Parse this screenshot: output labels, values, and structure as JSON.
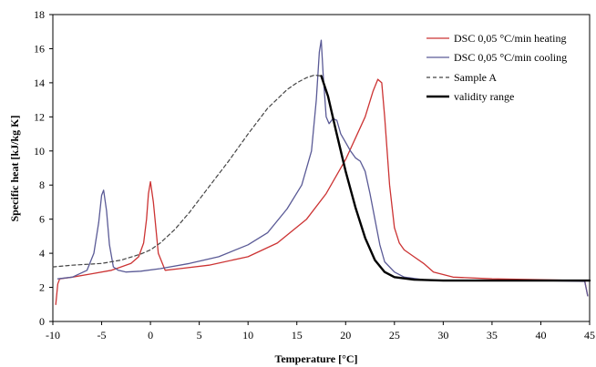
{
  "chart_data": {
    "type": "line",
    "title": "",
    "xlabel": "Temperature [°C]",
    "ylabel": "Specific heat  [kJ/kg K]",
    "xlim": [
      -10,
      45
    ],
    "ylim": [
      0,
      18
    ],
    "xticks": [
      -10,
      -5,
      0,
      5,
      10,
      15,
      20,
      25,
      30,
      35,
      40,
      45
    ],
    "yticks": [
      0,
      2,
      4,
      6,
      8,
      10,
      12,
      14,
      16,
      18
    ],
    "grid": false,
    "legend_position": "top-right",
    "series": [
      {
        "name": "DSC 0,05 °C/min heating",
        "color": "#cc3333",
        "style": "solid",
        "x": [
          -9.7,
          -9.5,
          -9.3,
          -8,
          -6,
          -4,
          -2,
          -1.2,
          -0.7,
          -0.4,
          -0.2,
          0,
          0.3,
          0.8,
          1.5,
          3,
          6,
          10,
          13,
          16,
          18,
          20,
          22,
          22.8,
          23.3,
          23.7,
          24,
          24.5,
          25,
          25.5,
          26,
          27,
          28,
          29,
          31,
          35,
          40,
          44.5,
          44.8
        ],
        "y": [
          1.0,
          2.2,
          2.5,
          2.6,
          2.8,
          3.0,
          3.4,
          3.8,
          4.6,
          6.0,
          7.5,
          8.2,
          7.0,
          4.0,
          3.0,
          3.1,
          3.3,
          3.8,
          4.6,
          6.0,
          7.5,
          9.5,
          12.0,
          13.5,
          14.2,
          14.0,
          12.0,
          8.0,
          5.5,
          4.6,
          4.2,
          3.8,
          3.4,
          2.9,
          2.6,
          2.5,
          2.45,
          2.4,
          1.5
        ]
      },
      {
        "name": "DSC 0,05 °C/min cooling",
        "color": "#5a5a96",
        "style": "solid",
        "x": [
          -9.5,
          -8,
          -6.5,
          -5.8,
          -5.3,
          -5.0,
          -4.8,
          -4.5,
          -4.2,
          -3.8,
          -3.3,
          -2.5,
          -1,
          1,
          4,
          7,
          10,
          12,
          14,
          15.5,
          16.5,
          17,
          17.3,
          17.5,
          17.7,
          18.0,
          18.3,
          18.7,
          19.1,
          19.5,
          20,
          20.5,
          21,
          21.5,
          22,
          22.5,
          23,
          23.5,
          24,
          25,
          26,
          28,
          30,
          35,
          40,
          44.5,
          44.8
        ],
        "y": [
          2.5,
          2.6,
          3.0,
          4.0,
          5.8,
          7.4,
          7.7,
          6.5,
          4.5,
          3.2,
          3.0,
          2.9,
          2.95,
          3.1,
          3.4,
          3.8,
          4.5,
          5.2,
          6.6,
          8.0,
          10.0,
          13.0,
          15.8,
          16.5,
          14.5,
          12.0,
          11.6,
          11.9,
          11.8,
          11.0,
          10.5,
          10.0,
          9.6,
          9.4,
          8.8,
          7.5,
          6.0,
          4.5,
          3.5,
          2.9,
          2.6,
          2.45,
          2.4,
          2.4,
          2.4,
          2.35,
          1.5
        ]
      },
      {
        "name": "Sample A",
        "color": "#444444",
        "style": "dashed",
        "x": [
          -10,
          -8,
          -5,
          -3,
          -1,
          0,
          1,
          2.5,
          4,
          6,
          8,
          10,
          12,
          14,
          15,
          16,
          16.8,
          17.5
        ],
        "y": [
          3.2,
          3.3,
          3.4,
          3.6,
          3.95,
          4.2,
          4.6,
          5.4,
          6.4,
          7.9,
          9.4,
          11.0,
          12.5,
          13.6,
          14.0,
          14.3,
          14.45,
          14.4
        ]
      },
      {
        "name": "validity range",
        "color": "#000000",
        "style": "solid-bold",
        "x": [
          17.5,
          18.2,
          19,
          20,
          21,
          22,
          23,
          24,
          25,
          27,
          30,
          35,
          40,
          45
        ],
        "y": [
          14.4,
          13.2,
          11.2,
          8.8,
          6.7,
          4.9,
          3.6,
          2.9,
          2.6,
          2.45,
          2.4,
          2.4,
          2.4,
          2.4
        ]
      }
    ]
  }
}
